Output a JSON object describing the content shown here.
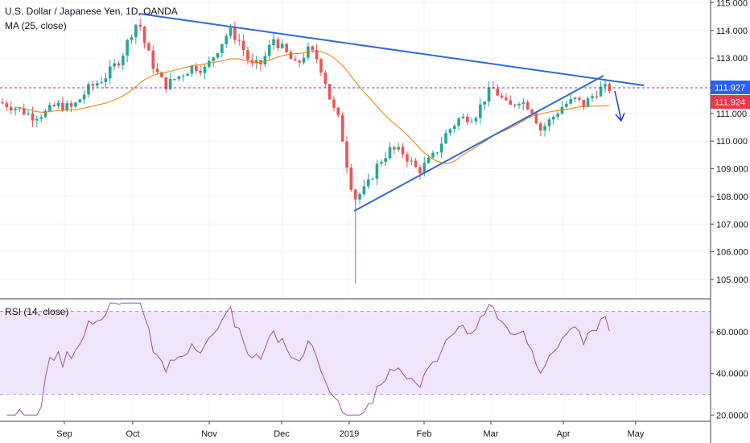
{
  "header": {
    "title": "U.S. Dollar / Japanese Yen, 1D, OANDA",
    "ma_label": "MA (25, close)",
    "rsi_label": "RSI (14, close)"
  },
  "chart_data": {
    "type": "candlestick",
    "x_tick_labels": [
      "Sep",
      "Oct",
      "Nov",
      "Dec",
      "2019",
      "Feb",
      "Mar",
      "Apr",
      "May"
    ],
    "price_axis": {
      "ticks": [
        "115.000",
        "114.000",
        "113.000",
        "112.000",
        "111.000",
        "110.000",
        "109.000",
        "108.000",
        "107.000",
        "106.000",
        "105.000"
      ],
      "ylim": [
        104.3,
        115.1
      ]
    },
    "rsi_axis": {
      "ticks": [
        "60.0000",
        "40.0000",
        "20.0000"
      ],
      "ylim": [
        17,
        76
      ],
      "band": [
        30,
        70
      ]
    },
    "price_tags": [
      {
        "label": "111.927",
        "value": 111.927,
        "color": "#2962ff"
      },
      {
        "label": "111.924",
        "value": 111.924,
        "color": "#f23645"
      }
    ],
    "colors": {
      "up": "#26a69a",
      "down": "#ef5350",
      "ma": "#f57c00",
      "trendline": "#2e6bd1",
      "rsi": "#9c4fb5",
      "rsi_band": "#f0e6fa"
    }
  }
}
